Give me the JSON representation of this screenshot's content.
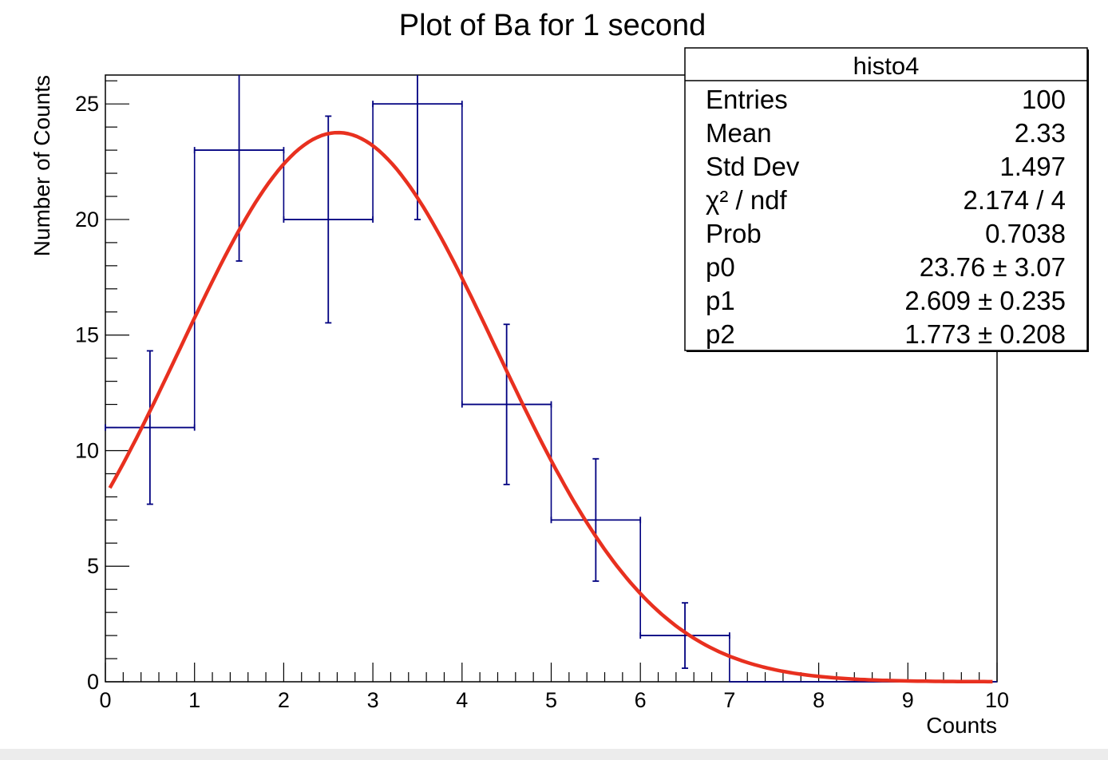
{
  "chart_data": {
    "type": "bar",
    "title": "Plot of Ba for 1 second",
    "xlabel": "Counts",
    "ylabel": "Number of Counts",
    "xlim": [
      0,
      10
    ],
    "ylim": [
      0,
      26.25
    ],
    "x_ticks": [
      "0",
      "1",
      "2",
      "3",
      "4",
      "5",
      "6",
      "7",
      "8",
      "9",
      "10"
    ],
    "y_ticks": [
      "0",
      "5",
      "10",
      "15",
      "20",
      "25"
    ],
    "grid": false,
    "histogram": {
      "name": "histo4",
      "bin_edges": [
        0,
        1,
        2,
        3,
        4,
        5,
        6,
        7,
        8,
        9,
        10
      ],
      "values": [
        11,
        23,
        20,
        25,
        12,
        7,
        2,
        0,
        0,
        0
      ],
      "errors": [
        3.317,
        4.796,
        4.472,
        5.0,
        3.464,
        2.646,
        1.414,
        0,
        0,
        0
      ],
      "color": "#000080"
    },
    "fit": {
      "function": "gaus",
      "p0": 23.76,
      "p1": 2.609,
      "p2": 1.773,
      "color": "#e8301f"
    },
    "stats_box": {
      "title": "histo4",
      "placement": "top-right",
      "rows": [
        {
          "label": "Entries",
          "value": "100"
        },
        {
          "label": "Mean",
          "value": "2.33"
        },
        {
          "label": "Std Dev",
          "value": "1.497"
        },
        {
          "label": "χ² / ndf",
          "value": "2.174 / 4"
        },
        {
          "label": "Prob",
          "value": "0.7038"
        },
        {
          "label": "p0",
          "value": "23.76 ± 3.07"
        },
        {
          "label": "p1",
          "value": "2.609 ± 0.235"
        },
        {
          "label": "p2",
          "value": "1.773 ± 0.208"
        }
      ]
    }
  }
}
